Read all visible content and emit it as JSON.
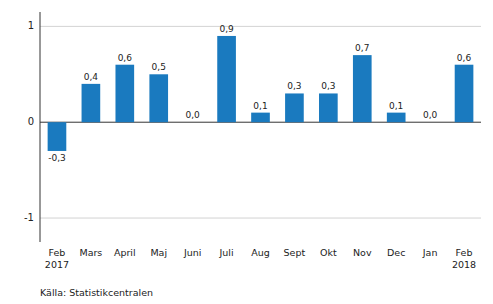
{
  "chart_data": {
    "type": "bar",
    "categories": [
      "Feb\n2017",
      "Mars",
      "April",
      "Maj",
      "Juni",
      "Juli",
      "Aug",
      "Sept",
      "Okt",
      "Nov",
      "Dec",
      "Jan",
      "Feb\n2018"
    ],
    "values": [
      -0.3,
      0.4,
      0.6,
      0.5,
      0.0,
      0.9,
      0.1,
      0.3,
      0.3,
      0.7,
      0.1,
      0.0,
      0.6
    ],
    "value_labels": [
      "-0,3",
      "0,4",
      "0,6",
      "0,5",
      "0,0",
      "0,9",
      "0,1",
      "0,3",
      "0,3",
      "0,7",
      "0,1",
      "0,0",
      "0,6"
    ],
    "data_labels": true,
    "color": "#1a7abf",
    "ylim": [
      -1.25,
      1.15
    ],
    "yticks": [
      -1,
      0,
      1
    ],
    "grid": true,
    "annotations": [
      "Källa: Statistikcentralen"
    ]
  }
}
